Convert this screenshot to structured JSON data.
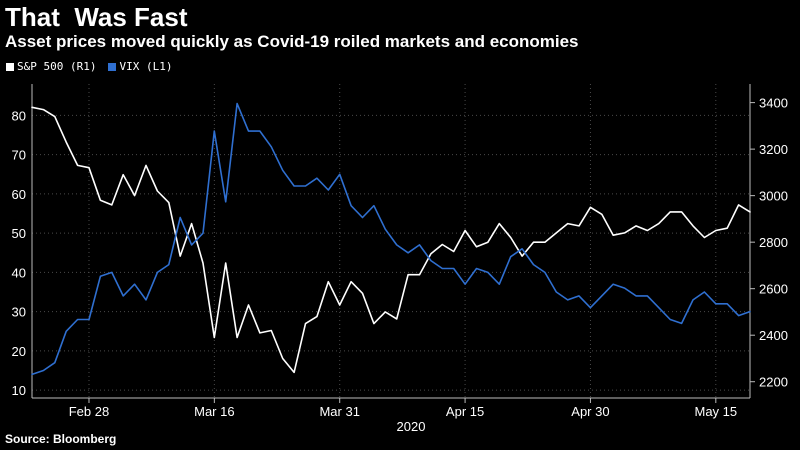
{
  "title": "That  Was Fast",
  "subtitle": "Asset prices moved quickly as Covid-19 roiled markets and economies",
  "source": "Source: Bloomberg",
  "chart_data": {
    "type": "line",
    "legend_placement": "top-left",
    "x_axis": {
      "tick_labels": [
        "Feb 28",
        "Mar 16",
        "Mar 31",
        "Apr 15",
        "Apr 30",
        "May 15"
      ],
      "tick_index": [
        5,
        16,
        27,
        38,
        49,
        60
      ],
      "year_label": "2020"
    },
    "y_left": {
      "range": [
        8,
        88
      ],
      "ticks": [
        10,
        20,
        30,
        40,
        50,
        60,
        70,
        80
      ]
    },
    "y_right": {
      "range": [
        2130,
        3480
      ],
      "ticks": [
        2200,
        2400,
        2600,
        2800,
        3000,
        3200,
        3400
      ]
    },
    "grid": true,
    "series": [
      {
        "name": "S&P 500 (R1)",
        "axis": "right",
        "color": "#ffffff",
        "values": [
          3380,
          3370,
          3340,
          3230,
          3130,
          3120,
          2980,
          2960,
          3090,
          3000,
          3130,
          3020,
          2970,
          2740,
          2880,
          2710,
          2390,
          2710,
          2390,
          2530,
          2410,
          2420,
          2300,
          2240,
          2450,
          2480,
          2630,
          2530,
          2630,
          2580,
          2450,
          2500,
          2470,
          2660,
          2660,
          2750,
          2790,
          2760,
          2850,
          2780,
          2800,
          2880,
          2820,
          2740,
          2800,
          2800,
          2840,
          2880,
          2870,
          2950,
          2920,
          2830,
          2840,
          2870,
          2850,
          2880,
          2930,
          2930,
          2870,
          2820,
          2850,
          2860,
          2960,
          2930
        ]
      },
      {
        "name": "VIX (L1)",
        "axis": "left",
        "color": "#2f6fd0",
        "values": [
          14,
          15,
          17,
          25,
          28,
          28,
          39,
          40,
          34,
          37,
          33,
          40,
          42,
          54,
          47,
          50,
          76,
          58,
          83,
          76,
          76,
          72,
          66,
          62,
          62,
          64,
          61,
          65,
          57,
          54,
          57,
          51,
          47,
          45,
          47,
          43,
          41,
          41,
          37,
          41,
          40,
          37,
          44,
          46,
          42,
          40,
          35,
          33,
          34,
          31,
          34,
          37,
          36,
          34,
          34,
          31,
          28,
          27,
          33,
          35,
          32,
          32,
          29,
          30
        ]
      }
    ]
  }
}
